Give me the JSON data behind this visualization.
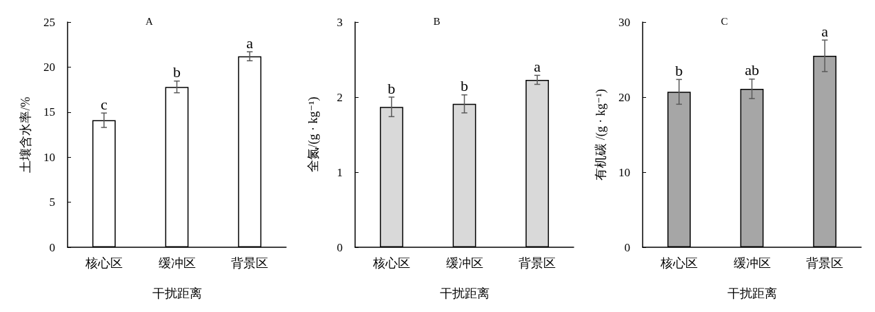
{
  "chart_data": [
    {
      "type": "bar",
      "title": "A",
      "xlabel": "干扰距离",
      "ylabel": "土壤含水率/%",
      "categories": [
        "核心区",
        "缓冲区",
        "背景区"
      ],
      "series": [
        {
          "color": "#ffffff",
          "values": [
            14.1,
            17.8,
            21.2
          ],
          "errors": [
            0.8,
            0.65,
            0.5
          ],
          "value_labels": [
            "c",
            "b",
            "a"
          ]
        }
      ],
      "ylim": [
        0,
        25
      ],
      "yticks": [
        0,
        5,
        10,
        15,
        20,
        25
      ],
      "grid": false
    },
    {
      "type": "bar",
      "title": "B",
      "xlabel": "干扰距离",
      "ylabel": "全氮/(g · kg⁻¹)",
      "categories": [
        "核心区",
        "缓冲区",
        "背景区"
      ],
      "series": [
        {
          "color": "#d9d9d9",
          "values": [
            1.87,
            1.91,
            2.23
          ],
          "errors": [
            0.13,
            0.12,
            0.06
          ],
          "value_labels": [
            "b",
            "b",
            "a"
          ]
        }
      ],
      "ylim": [
        0,
        3
      ],
      "yticks": [
        0,
        1,
        2,
        3
      ],
      "grid": false
    },
    {
      "type": "bar",
      "title": "C",
      "xlabel": "干扰距离",
      "ylabel": "有机碳 /(g · kg⁻¹)",
      "categories": [
        "核心区",
        "缓冲区",
        "背景区"
      ],
      "series": [
        {
          "color": "#a6a6a6",
          "values": [
            20.7,
            21.1,
            25.5
          ],
          "errors": [
            1.65,
            1.3,
            2.1
          ],
          "value_labels": [
            "b",
            "ab",
            "a"
          ]
        }
      ],
      "ylim": [
        0,
        30
      ],
      "yticks": [
        0,
        10,
        20,
        30
      ],
      "grid": false
    }
  ]
}
